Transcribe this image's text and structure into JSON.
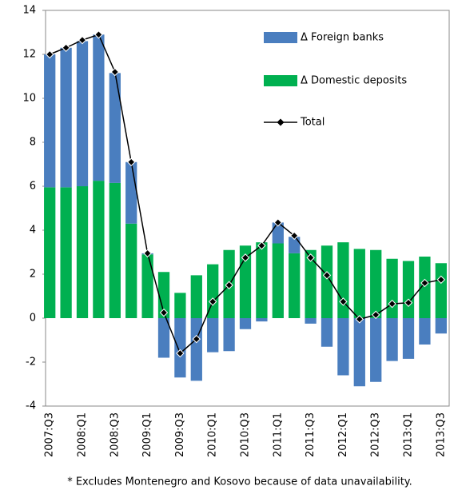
{
  "chart_data": {
    "type": "bar",
    "stacked": true,
    "categories": [
      "2007:Q3",
      null,
      "2008:Q1",
      null,
      "2008:Q3",
      null,
      "2009:Q1",
      null,
      "2009:Q3",
      null,
      "2010:Q1",
      null,
      "2010:Q3",
      null,
      "2011:Q1",
      null,
      "2011:Q3",
      null,
      "2012:Q1",
      null,
      "2012:Q3",
      null,
      "2013:Q1",
      null,
      "2013:Q3"
    ],
    "series": [
      {
        "name": "Δ Foreign banks",
        "type": "bar",
        "color": "#4a7ebf",
        "values": [
          6.05,
          6.35,
          6.6,
          6.65,
          5.0,
          2.8,
          0.05,
          -1.8,
          -2.7,
          -2.85,
          -1.55,
          -1.5,
          -0.5,
          -0.15,
          0.95,
          0.75,
          -0.25,
          -1.3,
          -2.6,
          -3.1,
          -2.9,
          -1.95,
          -1.85,
          -1.2,
          -0.7
        ]
      },
      {
        "name": "Δ Domestic deposits",
        "type": "bar",
        "color": "#00b050",
        "values": [
          5.95,
          5.95,
          6.0,
          6.25,
          6.15,
          4.3,
          2.9,
          2.1,
          1.15,
          1.95,
          2.45,
          3.1,
          3.3,
          3.45,
          3.4,
          2.95,
          3.1,
          3.3,
          3.45,
          3.15,
          3.1,
          2.7,
          2.6,
          2.8,
          2.5
        ]
      },
      {
        "name": "Total",
        "type": "line",
        "color": "#000000",
        "values": [
          12.0,
          12.3,
          12.65,
          12.9,
          11.2,
          7.1,
          2.95,
          0.25,
          -1.6,
          -0.95,
          0.75,
          1.5,
          2.75,
          3.3,
          4.35,
          3.75,
          2.75,
          1.95,
          0.75,
          -0.05,
          0.15,
          0.65,
          0.7,
          1.6,
          1.75
        ]
      }
    ],
    "ylim": [
      -4,
      14
    ],
    "yticks": [
      -4,
      -2,
      0,
      2,
      4,
      6,
      8,
      10,
      12,
      14
    ],
    "grid": false,
    "legend": "upper right",
    "note": "* Excludes Montenegro and Kosovo because of data unavailability."
  }
}
